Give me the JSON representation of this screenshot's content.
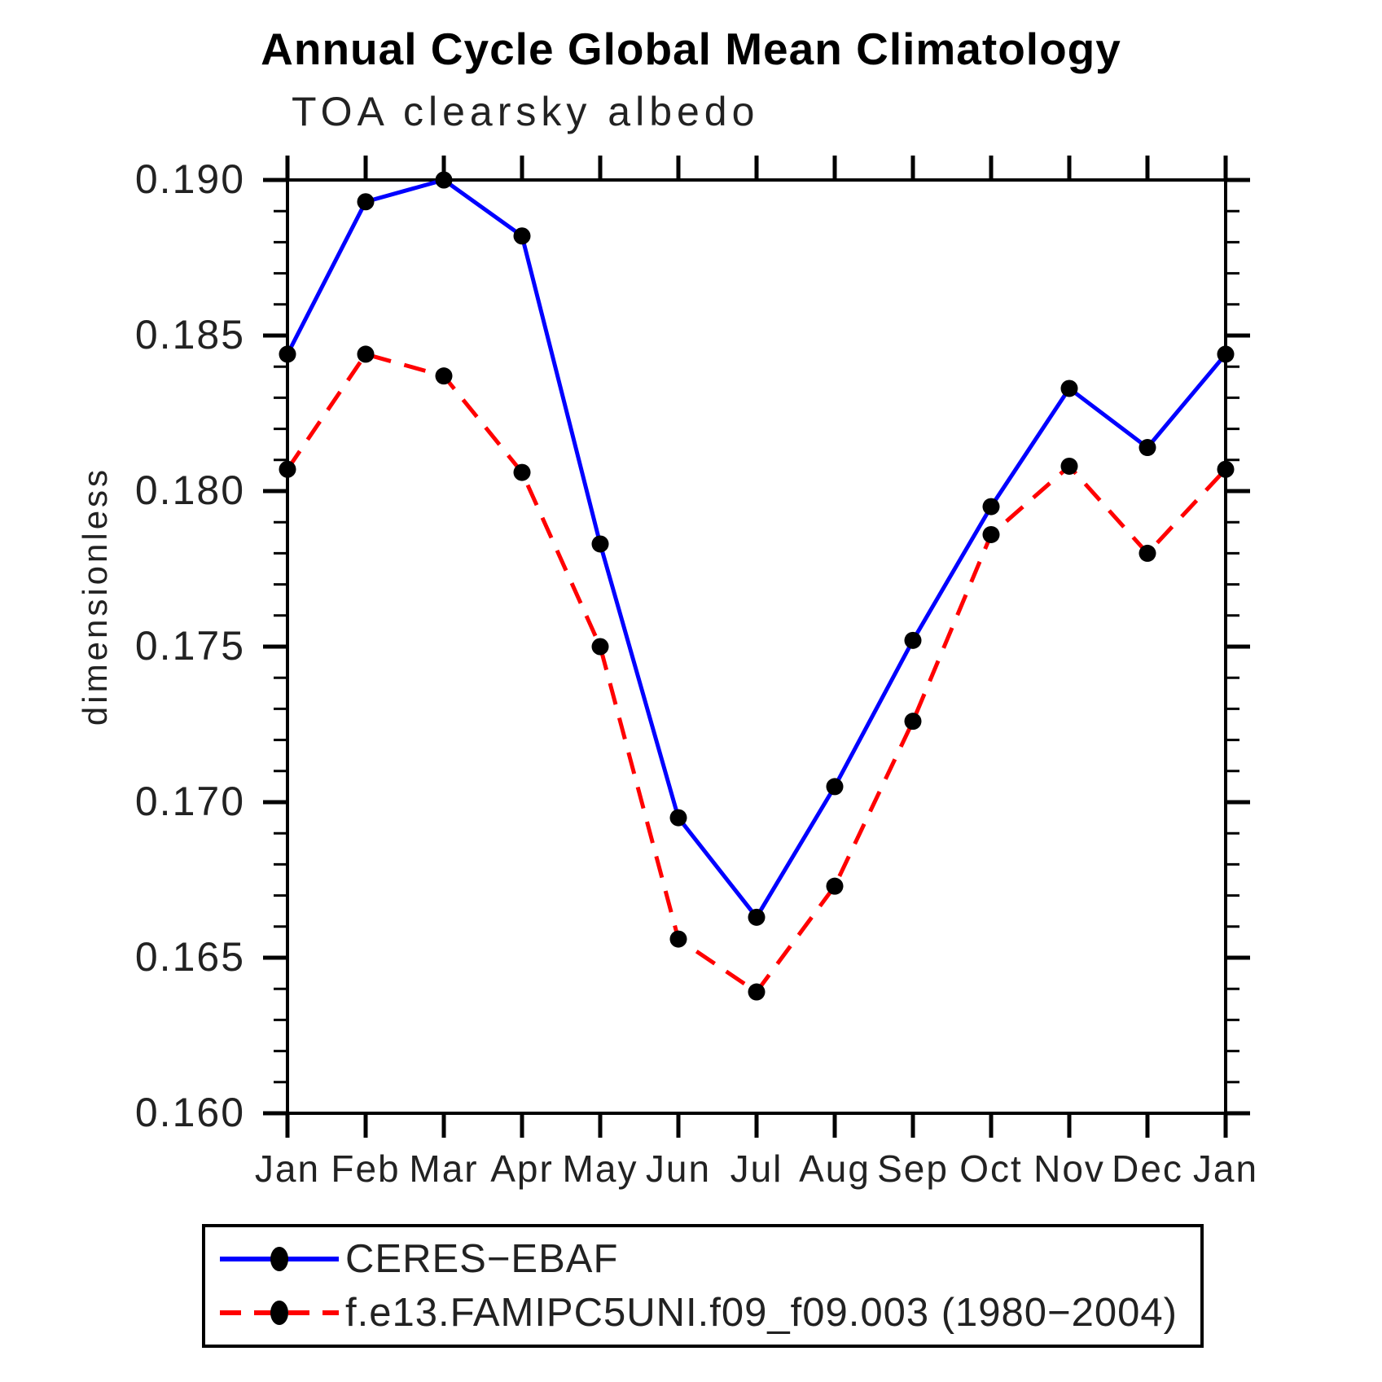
{
  "title": "Annual Cycle Global Mean Climatology",
  "subtitle": "TOA clearsky albedo",
  "ylabel": "dimensionless",
  "colors": {
    "obs_line": "#0000ff",
    "model_line": "#ff0000",
    "marker": "#000000",
    "axis": "#000000",
    "text": "#222222"
  },
  "chart_data": {
    "type": "line",
    "title": "Annual Cycle Global Mean Climatology",
    "subtitle": "TOA clearsky albedo",
    "xlabel": "",
    "ylabel": "dimensionless",
    "categories": [
      "Jan",
      "Feb",
      "Mar",
      "Apr",
      "May",
      "Jun",
      "Jul",
      "Aug",
      "Sep",
      "Oct",
      "Nov",
      "Dec",
      "Jan"
    ],
    "series": [
      {
        "name": "CERES−EBAF",
        "color": "#0000ff",
        "line_style": "solid",
        "marker": "filled-circle",
        "marker_color": "#000000",
        "values": [
          0.1844,
          0.1893,
          0.19,
          0.1882,
          0.1783,
          0.1695,
          0.1663,
          0.1705,
          0.1752,
          0.1795,
          0.1833,
          0.1814,
          0.1844
        ]
      },
      {
        "name": "f.e13.FAMIPC5UNI.f09_f09.003 (1980−2004)",
        "color": "#ff0000",
        "line_style": "dashed",
        "marker": "filled-circle",
        "marker_color": "#000000",
        "values": [
          0.1807,
          0.1844,
          0.1837,
          0.1806,
          0.175,
          0.1656,
          0.1639,
          0.1673,
          0.1726,
          0.1786,
          0.1808,
          0.178,
          0.1807
        ]
      }
    ],
    "ylim": [
      0.16,
      0.19
    ],
    "ytick_step": 0.005,
    "ytick_minor_step": 0.001,
    "ytick_labels": [
      "0.160",
      "0.165",
      "0.170",
      "0.175",
      "0.180",
      "0.185",
      "0.190"
    ],
    "grid": false,
    "legend_position": "bottom"
  }
}
